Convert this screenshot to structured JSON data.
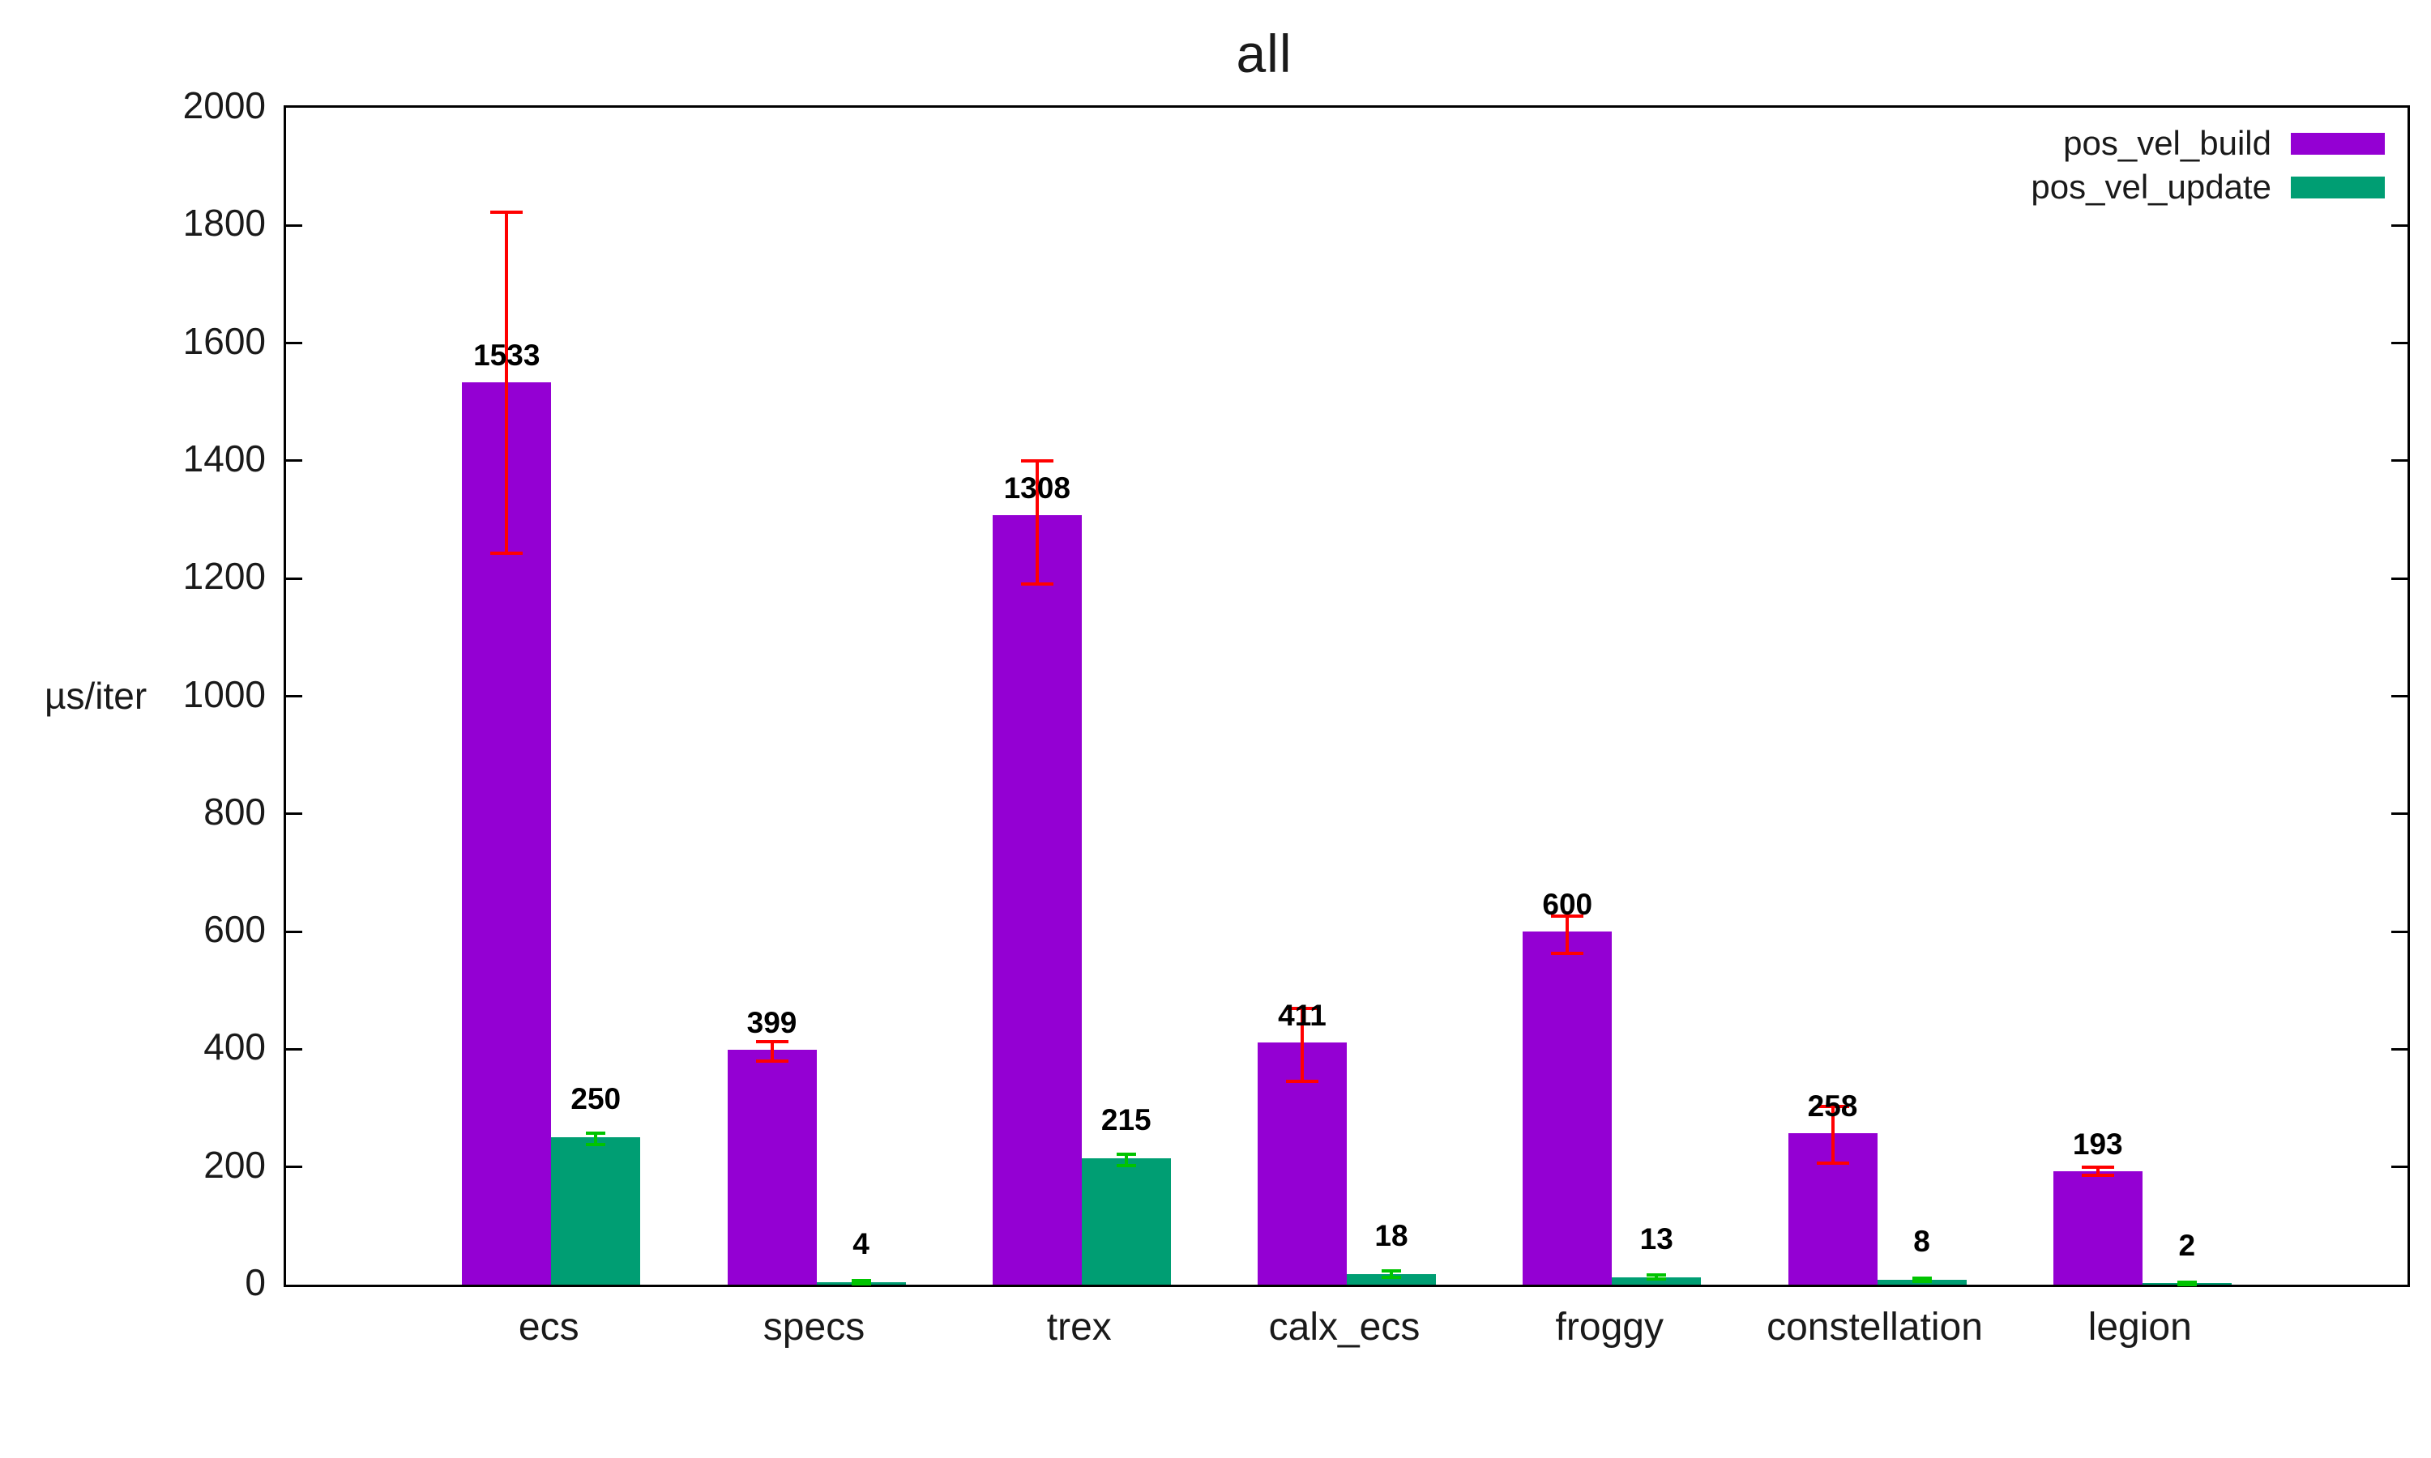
{
  "chart_data": {
    "type": "bar",
    "title": "all",
    "ylabel": "µs/iter",
    "categories": [
      "ecs",
      "specs",
      "trex",
      "calx_ecs",
      "froggy",
      "constellation",
      "legion"
    ],
    "series": [
      {
        "name": "pos_vel_build",
        "color": "#9400d3",
        "error_color": "#ff0000",
        "values": [
          1533,
          399,
          1308,
          411,
          600,
          258,
          193
        ],
        "error_low": [
          1243,
          380,
          1190,
          345,
          563,
          206,
          186
        ],
        "error_high": [
          1823,
          413,
          1400,
          470,
          626,
          303,
          200
        ]
      },
      {
        "name": "pos_vel_update",
        "color": "#009e73",
        "error_color": "#00c400",
        "values": [
          250,
          4,
          215,
          18,
          13,
          8,
          2
        ],
        "error_low": [
          238,
          1,
          202,
          13,
          9,
          5,
          0
        ],
        "error_high": [
          257,
          7,
          222,
          23,
          17,
          11,
          4
        ]
      }
    ],
    "ylim": [
      0,
      2000
    ],
    "ytick_step": 200,
    "grid": false,
    "legend_position": "top-right"
  }
}
